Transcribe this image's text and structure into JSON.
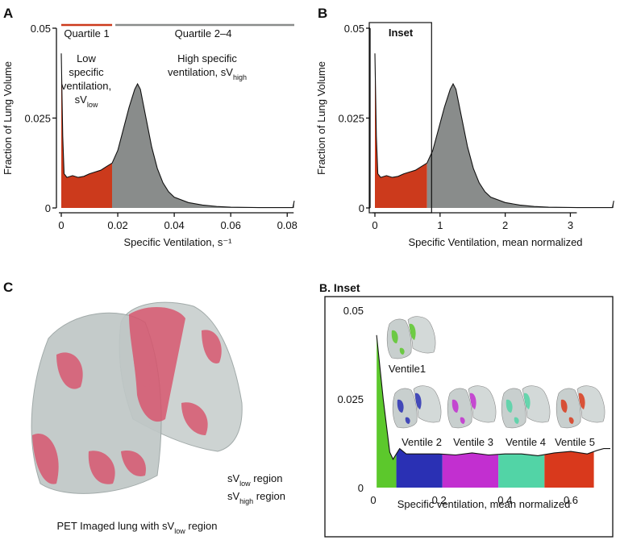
{
  "panel_labels": [
    "A",
    "B",
    "C",
    "B. Inset"
  ],
  "chart_data": [
    {
      "type": "area",
      "xlabel": "Specific Ventilation, s⁻¹",
      "ylabel": "Fraction of Lung Volume",
      "x": [
        0,
        0.0005,
        0.001,
        0.002,
        0.004,
        0.006,
        0.008,
        0.01,
        0.012,
        0.014,
        0.016,
        0.018,
        0.02,
        0.022,
        0.024,
        0.026,
        0.027,
        0.028,
        0.03,
        0.032,
        0.034,
        0.036,
        0.038,
        0.04,
        0.045,
        0.05,
        0.055,
        0.06,
        0.07,
        0.08,
        0.082,
        0.0825
      ],
      "values": [
        0.043,
        0.02,
        0.0095,
        0.0085,
        0.009,
        0.0085,
        0.0088,
        0.0095,
        0.01,
        0.0105,
        0.0115,
        0.0125,
        0.016,
        0.022,
        0.028,
        0.033,
        0.0345,
        0.033,
        0.025,
        0.017,
        0.011,
        0.007,
        0.0045,
        0.003,
        0.0015,
        0.0008,
        0.0004,
        0.0002,
        0.0001,
        0.0001,
        0.0001,
        0.002
      ],
      "bands": [
        {
          "label": "Quartile 1",
          "from": 0,
          "to": 0.018,
          "color": "#cc3a1c"
        },
        {
          "label": "Quartile 2–4",
          "from": 0.018,
          "to": 0.0825,
          "color": "#898c8b"
        }
      ],
      "annotations": [
        {
          "color": "#cc3a1c",
          "lines": [
            "Low",
            "specific",
            "ventilation,",
            [
              "sV",
              {
                "sub": "low"
              }
            ]
          ]
        },
        {
          "color": "#898c8b",
          "lines": [
            "High specific",
            [
              "ventilation, sV",
              {
                "sub": "high"
              }
            ]
          ]
        }
      ],
      "xlim": [
        0,
        0.0825
      ],
      "ylim": [
        0,
        0.05
      ],
      "xticks": [
        0,
        0.02,
        0.04,
        0.06,
        0.08
      ],
      "yticks": [
        0,
        0.025,
        0.05
      ]
    },
    {
      "type": "area",
      "xlabel": "Specific Ventilation, mean normalized",
      "ylabel": "Fraction of Lung Volume",
      "inset_label": "Inset",
      "x": [
        0,
        0.022,
        0.044,
        0.089,
        0.178,
        0.267,
        0.356,
        0.444,
        0.533,
        0.622,
        0.711,
        0.8,
        0.889,
        0.978,
        1.067,
        1.156,
        1.2,
        1.244,
        1.333,
        1.422,
        1.511,
        1.6,
        1.689,
        1.778,
        2.0,
        2.222,
        2.444,
        2.667,
        3.111,
        3.556,
        3.644,
        3.667
      ],
      "values": [
        0.043,
        0.02,
        0.0095,
        0.0085,
        0.009,
        0.0085,
        0.0088,
        0.0095,
        0.01,
        0.0105,
        0.0115,
        0.0125,
        0.016,
        0.022,
        0.028,
        0.033,
        0.0345,
        0.033,
        0.025,
        0.017,
        0.011,
        0.007,
        0.0045,
        0.003,
        0.0015,
        0.0008,
        0.0004,
        0.0002,
        0.0001,
        0.0001,
        0.0001,
        0.002
      ],
      "bands": [
        {
          "from": 0,
          "to": 0.8,
          "color": "#cc3a1c"
        },
        {
          "from": 0.8,
          "to": 3.667,
          "color": "#898c8b"
        }
      ],
      "xlim": [
        0,
        3.7
      ],
      "ylim": [
        0,
        0.05
      ],
      "xticks": [
        0,
        1,
        2,
        3
      ],
      "yticks": [
        0,
        0.025,
        0.05
      ]
    },
    {
      "type": "area",
      "xlabel": "Specific ventilation, mean normalized",
      "x": [
        0.01,
        0.03,
        0.05,
        0.06,
        0.07,
        0.08,
        0.1,
        0.15,
        0.2,
        0.25,
        0.3,
        0.35,
        0.4,
        0.45,
        0.5,
        0.55,
        0.6,
        0.65,
        0.68,
        0.7,
        0.72
      ],
      "values": [
        0.043,
        0.025,
        0.01,
        0.008,
        0.0095,
        0.011,
        0.0095,
        0.0095,
        0.0095,
        0.0092,
        0.0098,
        0.0092,
        0.0095,
        0.0095,
        0.009,
        0.0098,
        0.0102,
        0.0095,
        0.0105,
        0.011,
        0.011
      ],
      "bands": [
        {
          "label": "Ventile1",
          "from": 0.01,
          "to": 0.07,
          "color": "#5cc82c"
        },
        {
          "label": "Ventile 2",
          "from": 0.07,
          "to": 0.21,
          "color": "#2a30b4"
        },
        {
          "label": "Ventile 3",
          "from": 0.21,
          "to": 0.38,
          "color": "#c22fd0"
        },
        {
          "label": "Ventile 4",
          "from": 0.38,
          "to": 0.52,
          "color": "#52d4a6"
        },
        {
          "label": "Ventile 5",
          "from": 0.52,
          "to": 0.67,
          "color": "#d9391c"
        }
      ],
      "xlim": [
        0,
        0.72
      ],
      "ylim": [
        0,
        0.05
      ],
      "xticks": [
        0,
        0.2,
        0.4,
        0.6
      ],
      "yticks": [
        0,
        0.025,
        0.05
      ]
    }
  ],
  "lung_image": {
    "caption": [
      "PET Imaged lung with sV",
      {
        "sub": "low"
      },
      " region"
    ],
    "legend": [
      {
        "color": "#cc3a1c",
        "text": [
          "sV",
          {
            "sub": "low"
          },
          " region"
        ]
      },
      {
        "color": "#111111",
        "text": [
          "sV",
          {
            "sub": "high"
          },
          " region"
        ]
      }
    ]
  }
}
